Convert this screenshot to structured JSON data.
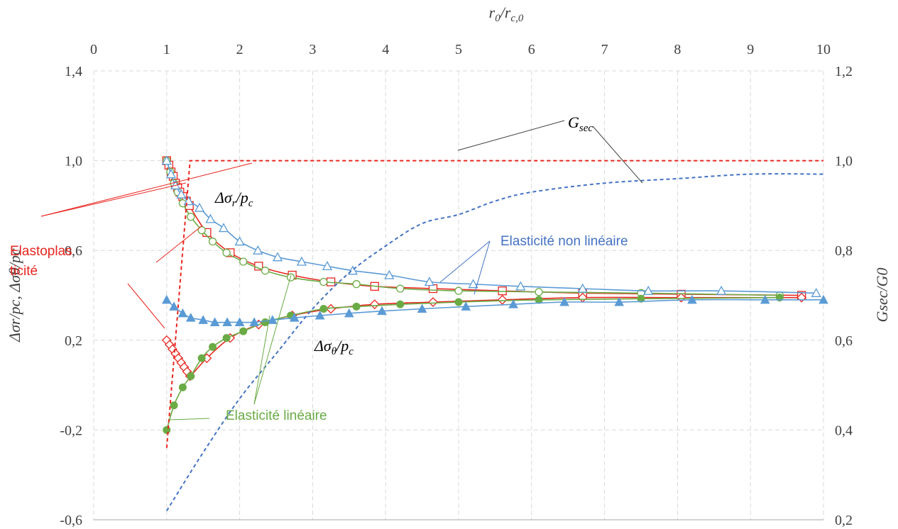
{
  "chart_data": {
    "type": "scatter",
    "x_axis_top": {
      "label_base": "r",
      "label_sub1": "0",
      "label_mid": "/r",
      "label_sub2": "c,0",
      "range": [
        0,
        10
      ],
      "ticks": [
        "0",
        "1",
        "2",
        "3",
        "4",
        "5",
        "6",
        "7",
        "8",
        "9",
        "10"
      ]
    },
    "y_axis_left": {
      "label": "Δσr/pc, Δσθ/pc",
      "range": [
        -0.6,
        1.4
      ],
      "ticks": [
        "-0,6",
        "-0,2",
        "0,2",
        "0,6",
        "1,0",
        "1,4"
      ],
      "tick_values": [
        -0.6,
        -0.2,
        0.2,
        0.6,
        1.0,
        1.4
      ]
    },
    "y_axis_right": {
      "label": "Gsec/G0",
      "range": [
        0.2,
        1.2
      ],
      "ticks": [
        "0,2",
        "0,4",
        "0,6",
        "0,8",
        "1,0",
        "1,2"
      ],
      "tick_values": [
        0.2,
        0.4,
        0.6,
        0.8,
        1.0,
        1.2
      ]
    },
    "grid": true,
    "colors": {
      "red": "#e8251f",
      "green": "#6aab45",
      "blue": "#5b9bd5",
      "blue_dash": "#4472c4",
      "grid": "#d9d9d9",
      "axis": "#a6a6a6"
    },
    "annotations": {
      "elastoplas_1": "Elastoplas",
      "elastoplas_2": "ticité",
      "nonlin": "Elasticité non linéaire",
      "lin": "Elasticité  linéaire",
      "gsec_base": "G",
      "gsec_sub": "sec",
      "sr_base": "Δσ",
      "sr_sub1": "r",
      "sr_mid": "/p",
      "sr_sub2": "c",
      "st_base": "Δσ",
      "st_sub1": "θ",
      "st_mid": "/p",
      "st_sub2": "c"
    },
    "series": [
      {
        "name": "Elastoplasticité Δσr/pc",
        "axis": "left",
        "marker": "square-open",
        "color": "#e8251f",
        "x": [
          1.0,
          1.03,
          1.06,
          1.09,
          1.12,
          1.15,
          1.18,
          1.22,
          1.27,
          1.31,
          1.55,
          1.87,
          2.26,
          2.72,
          3.25,
          3.85,
          4.65,
          5.6,
          6.7,
          8.05,
          9.7
        ],
        "y": [
          1.0,
          0.98,
          0.95,
          0.93,
          0.9,
          0.88,
          0.86,
          0.84,
          0.82,
          0.8,
          0.68,
          0.59,
          0.53,
          0.49,
          0.46,
          0.44,
          0.43,
          0.42,
          0.41,
          0.405,
          0.4
        ]
      },
      {
        "name": "Elastoplasticité Δσθ/pc",
        "axis": "left",
        "marker": "diamond-open",
        "color": "#e8251f",
        "x": [
          1.0,
          1.04,
          1.08,
          1.12,
          1.16,
          1.2,
          1.24,
          1.28,
          1.32,
          1.55,
          1.87,
          2.26,
          2.72,
          3.25,
          3.85,
          4.65,
          5.6,
          6.7,
          8.05,
          9.7
        ],
        "y": [
          0.2,
          0.18,
          0.16,
          0.14,
          0.12,
          0.1,
          0.08,
          0.06,
          0.04,
          0.12,
          0.21,
          0.27,
          0.31,
          0.34,
          0.36,
          0.37,
          0.38,
          0.39,
          0.39,
          0.39
        ]
      },
      {
        "name": "Elasticité linéaire Δσr/pc",
        "axis": "left",
        "marker": "circle-open",
        "color": "#6aab45",
        "x": [
          1.0,
          1.05,
          1.1,
          1.15,
          1.22,
          1.33,
          1.48,
          1.63,
          1.82,
          2.05,
          2.35,
          2.7,
          3.15,
          3.6,
          4.2,
          5.0,
          6.1,
          7.5,
          9.4
        ],
        "y": [
          1.0,
          0.95,
          0.9,
          0.86,
          0.81,
          0.75,
          0.69,
          0.64,
          0.59,
          0.55,
          0.51,
          0.48,
          0.46,
          0.45,
          0.43,
          0.42,
          0.415,
          0.41,
          0.4
        ]
      },
      {
        "name": "Elasticité linéaire Δσθ/pc",
        "axis": "left",
        "marker": "circle-filled",
        "color": "#6aab45",
        "x": [
          1.0,
          1.1,
          1.22,
          1.33,
          1.48,
          1.63,
          1.82,
          2.05,
          2.35,
          2.7,
          3.15,
          3.6,
          4.2,
          5.0,
          6.1,
          7.5,
          9.4
        ],
        "y": [
          -0.2,
          -0.09,
          -0.01,
          0.04,
          0.12,
          0.17,
          0.21,
          0.24,
          0.28,
          0.31,
          0.34,
          0.35,
          0.36,
          0.37,
          0.38,
          0.385,
          0.39
        ]
      },
      {
        "name": "Elasticité non linéaire Δσr/pc",
        "axis": "left",
        "marker": "triangle-open",
        "color": "#5b9bd5",
        "x": [
          1.0,
          1.06,
          1.12,
          1.2,
          1.3,
          1.45,
          1.6,
          1.78,
          2.0,
          2.25,
          2.52,
          2.85,
          3.2,
          3.55,
          4.05,
          4.6,
          5.2,
          5.85,
          6.7,
          7.6,
          8.6,
          9.9
        ],
        "y": [
          1.0,
          0.94,
          0.89,
          0.85,
          0.82,
          0.79,
          0.74,
          0.7,
          0.64,
          0.6,
          0.57,
          0.55,
          0.53,
          0.51,
          0.49,
          0.46,
          0.45,
          0.44,
          0.43,
          0.42,
          0.42,
          0.41
        ]
      },
      {
        "name": "Elasticité non linéaire Δσθ/pc",
        "axis": "left",
        "marker": "triangle-filled",
        "color": "#5b9bd5",
        "x": [
          1.0,
          1.1,
          1.22,
          1.33,
          1.5,
          1.66,
          1.83,
          2.0,
          2.2,
          2.45,
          2.75,
          3.1,
          3.5,
          3.95,
          4.5,
          5.1,
          5.75,
          6.45,
          7.2,
          8.2,
          9.2,
          10.0
        ],
        "y": [
          0.38,
          0.35,
          0.32,
          0.3,
          0.29,
          0.28,
          0.28,
          0.28,
          0.28,
          0.29,
          0.3,
          0.31,
          0.32,
          0.33,
          0.34,
          0.35,
          0.36,
          0.37,
          0.37,
          0.38,
          0.38,
          0.38
        ]
      },
      {
        "name": "Elastoplasticité Gsec/G0",
        "axis": "right",
        "marker": "none",
        "color": "#e8251f",
        "dashed": true,
        "fit": "linear",
        "x": [
          1.0,
          1.32,
          10.0
        ],
        "y": [
          0.36,
          1.0,
          1.0
        ]
      },
      {
        "name": "Elasticité non linéaire Gsec/G0",
        "axis": "right",
        "marker": "none",
        "color": "#4472c4",
        "dashed": true,
        "fit": "smooth",
        "x": [
          1.0,
          1.5,
          2.0,
          2.5,
          3.0,
          3.5,
          4.0,
          4.5,
          5.0,
          5.5,
          6.0,
          7.0,
          8.0,
          9.0,
          10.0
        ],
        "y": [
          0.22,
          0.35,
          0.47,
          0.57,
          0.67,
          0.75,
          0.81,
          0.86,
          0.88,
          0.91,
          0.93,
          0.95,
          0.96,
          0.97,
          0.97
        ]
      }
    ]
  }
}
